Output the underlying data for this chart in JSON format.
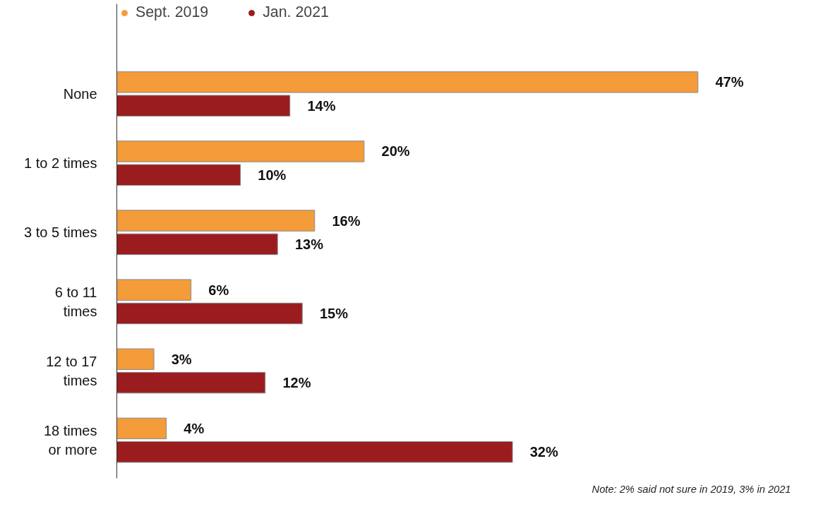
{
  "chart_data": {
    "type": "bar",
    "orientation": "horizontal",
    "categories": [
      "None",
      "1 to 2 times",
      "3 to 5 times",
      "6 to 11\ntimes",
      "12 to 17\ntimes",
      "18 times\nor more"
    ],
    "series": [
      {
        "name": "Sept. 2019",
        "color": "#f49b3a",
        "values": [
          47,
          20,
          16,
          6,
          3,
          4
        ],
        "value_labels": [
          "47%",
          "20%",
          "16%",
          "6%",
          "3%",
          "4%"
        ]
      },
      {
        "name": "Jan. 2021",
        "color": "#9b1c1f",
        "values": [
          14,
          10,
          13,
          15,
          12,
          32
        ],
        "value_labels": [
          "14%",
          "10%",
          "13%",
          "15%",
          "12%",
          "32%"
        ]
      }
    ],
    "legend": "top left",
    "tick_labels": "y",
    "grid": false,
    "annotations": [
      "Note: 2% said not sure in 2019, 3% in 2021"
    ]
  }
}
